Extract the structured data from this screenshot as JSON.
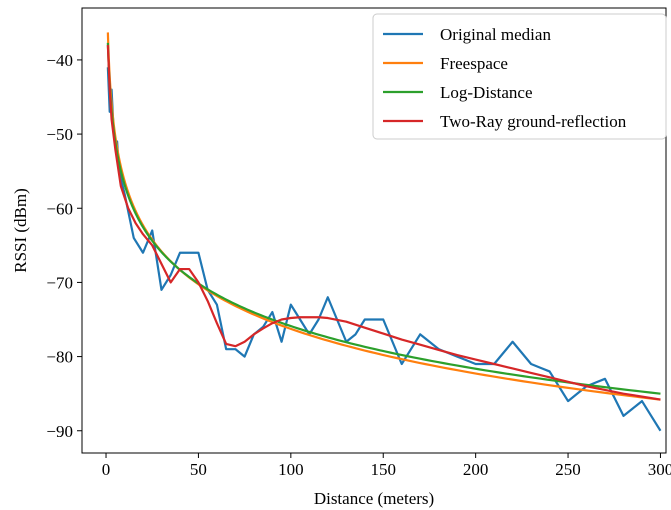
{
  "chart_data": {
    "type": "line",
    "title": "",
    "xlabel": "Distance (meters)",
    "ylabel": "RSSI (dBm)",
    "xlim": [
      -13,
      303
    ],
    "ylim": [
      -93,
      -33
    ],
    "xticks": [
      0,
      50,
      100,
      150,
      200,
      250,
      300
    ],
    "yticks": [
      -40,
      -50,
      -60,
      -70,
      -80,
      -90
    ],
    "xtick_labels": [
      "0",
      "50",
      "100",
      "150",
      "200",
      "250",
      "300"
    ],
    "ytick_labels": [
      "−40",
      "−50",
      "−60",
      "−70",
      "−80",
      "−90"
    ],
    "grid": false,
    "legend_position": "top-right",
    "series": [
      {
        "name": "Original median",
        "color": "#1f77b4",
        "x": [
          1,
          2,
          3,
          4,
          5,
          6,
          7,
          8,
          9,
          10,
          15,
          20,
          25,
          30,
          35,
          40,
          45,
          50,
          55,
          60,
          65,
          70,
          75,
          80,
          85,
          90,
          95,
          100,
          105,
          110,
          115,
          120,
          125,
          130,
          135,
          140,
          145,
          150,
          155,
          160,
          165,
          170,
          175,
          180,
          185,
          190,
          195,
          200,
          205,
          210,
          215,
          220,
          225,
          230,
          235,
          240,
          245,
          250,
          255,
          260,
          265,
          270,
          275,
          280,
          285,
          290,
          295,
          300
        ],
        "y": [
          -41,
          -47,
          -44,
          -49,
          -51,
          -51,
          -55,
          -56,
          -57,
          -58,
          -64,
          -66,
          -63,
          -71,
          -69,
          -66,
          -66,
          -66,
          -71,
          -73,
          -79,
          -79,
          -80,
          -77,
          -76,
          -74,
          -78,
          -73,
          -75,
          -77,
          -75,
          -72,
          -75,
          -78,
          -77,
          -75,
          -75,
          -75,
          -78,
          -81,
          -79,
          -77,
          -78,
          -79,
          -79.5,
          -80,
          -80.5,
          -81,
          -81,
          -81,
          -79.5,
          -78,
          -79.5,
          -81,
          -81.5,
          -82,
          -84,
          -86,
          -85,
          -84,
          -83.5,
          -83,
          -85.5,
          -88,
          -87,
          -86,
          -88,
          -90
        ]
      },
      {
        "name": "Freespace",
        "color": "#ff7f0e",
        "model": "freespace",
        "x": [
          1,
          300
        ],
        "y": [
          -36.3,
          -85.8
        ]
      },
      {
        "name": "Log-Distance",
        "color": "#2ca02c",
        "model": "log",
        "x": [
          1,
          300
        ],
        "y": [
          -37.7,
          -85
        ]
      },
      {
        "name": "Two-Ray ground-reflection",
        "color": "#d62728",
        "x": [
          1,
          2,
          3,
          5,
          8,
          12,
          16,
          20,
          25,
          30,
          35,
          40,
          45,
          50,
          55,
          60,
          65,
          70,
          75,
          80,
          85,
          90,
          95,
          100,
          105,
          110,
          115,
          120,
          130,
          140,
          150,
          160,
          170,
          180,
          190,
          200,
          210,
          220,
          230,
          240,
          250,
          260,
          270,
          280,
          290,
          300
        ],
        "y": [
          -38,
          -44,
          -48,
          -52,
          -57,
          -60,
          -62,
          -63.5,
          -65,
          -67.5,
          -70,
          -68.2,
          -68.2,
          -70,
          -72.5,
          -75.5,
          -78.3,
          -78.6,
          -78,
          -77,
          -76.2,
          -75.5,
          -75,
          -74.8,
          -74.7,
          -74.7,
          -74.7,
          -74.8,
          -75.3,
          -76.1,
          -76.9,
          -77.7,
          -78.4,
          -79.1,
          -79.8,
          -80.4,
          -81,
          -81.6,
          -82.2,
          -82.8,
          -83.4,
          -84,
          -84.5,
          -85,
          -85.4,
          -85.8
        ]
      }
    ]
  }
}
